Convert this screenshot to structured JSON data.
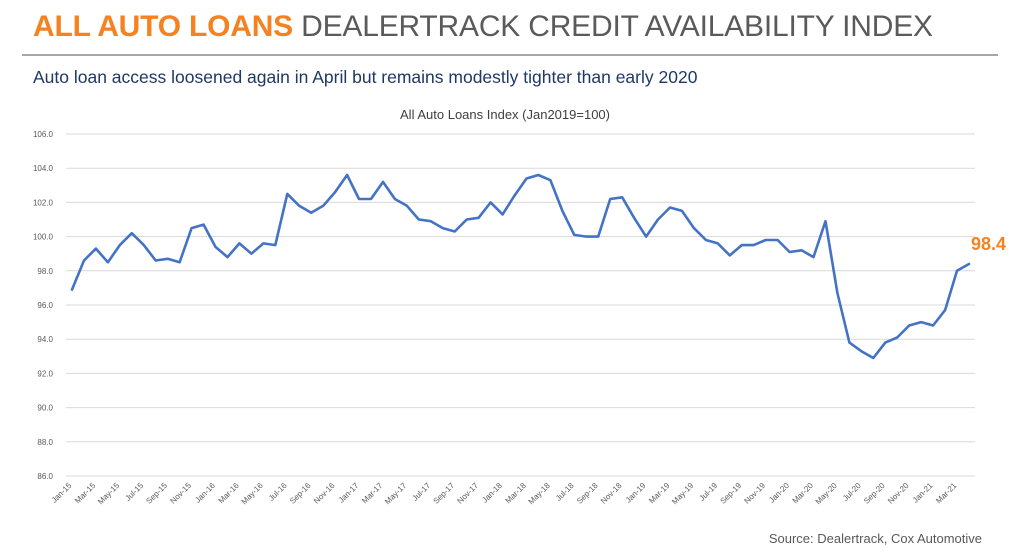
{
  "header": {
    "title_accent": "ALL AUTO LOANS",
    "title_rest": "DEALERTRACK CREDIT AVAILABILITY INDEX",
    "subtitle": "Auto loan access loosened again in April but remains modestly tighter than early 2020"
  },
  "source": "Source: Dealertrack, Cox Automotive",
  "colors": {
    "accent": "#F58220",
    "line": "#4472C4",
    "subtitle": "#1f3864"
  },
  "chart_data": {
    "type": "line",
    "title": "All Auto Loans Index (Jan2019=100)",
    "xlabel": "",
    "ylabel": "",
    "ylim": [
      86.0,
      106.0
    ],
    "y_ticks": [
      "86.0",
      "88.0",
      "90.0",
      "92.0",
      "94.0",
      "96.0",
      "98.0",
      "100.0",
      "102.0",
      "104.0",
      "106.0"
    ],
    "grid": true,
    "x": [
      "Jan-15",
      "Feb-15",
      "Mar-15",
      "Apr-15",
      "May-15",
      "Jun-15",
      "Jul-15",
      "Aug-15",
      "Sep-15",
      "Oct-15",
      "Nov-15",
      "Dec-15",
      "Jan-16",
      "Feb-16",
      "Mar-16",
      "Apr-16",
      "May-16",
      "Jun-16",
      "Jul-16",
      "Aug-16",
      "Sep-16",
      "Oct-16",
      "Nov-16",
      "Dec-16",
      "Jan-17",
      "Feb-17",
      "Mar-17",
      "Apr-17",
      "May-17",
      "Jun-17",
      "Jul-17",
      "Aug-17",
      "Sep-17",
      "Oct-17",
      "Nov-17",
      "Dec-17",
      "Jan-18",
      "Feb-18",
      "Mar-18",
      "Apr-18",
      "May-18",
      "Jun-18",
      "Jul-18",
      "Aug-18",
      "Sep-18",
      "Oct-18",
      "Nov-18",
      "Dec-18",
      "Jan-19",
      "Feb-19",
      "Mar-19",
      "Apr-19",
      "May-19",
      "Jun-19",
      "Jul-19",
      "Aug-19",
      "Sep-19",
      "Oct-19",
      "Nov-19",
      "Dec-19",
      "Jan-20",
      "Feb-20",
      "Mar-20",
      "Apr-20",
      "May-20",
      "Jun-20",
      "Jul-20",
      "Aug-20",
      "Sep-20",
      "Oct-20",
      "Nov-20",
      "Dec-20",
      "Jan-21",
      "Feb-21",
      "Mar-21",
      "Apr-21"
    ],
    "x_tick_labels": [
      "Jan-15",
      "Mar-15",
      "May-15",
      "Jul-15",
      "Sep-15",
      "Nov-15",
      "Jan-16",
      "Mar-16",
      "May-16",
      "Jul-16",
      "Sep-16",
      "Nov-16",
      "Jan-17",
      "Mar-17",
      "May-17",
      "Jul-17",
      "Sep-17",
      "Nov-17",
      "Jan-18",
      "Mar-18",
      "May-18",
      "Jul-18",
      "Sep-18",
      "Nov-18",
      "Jan-19",
      "Mar-19",
      "May-19",
      "Jul-19",
      "Sep-19",
      "Nov-19",
      "Jan-20",
      "Mar-20",
      "May-20",
      "Jul-20",
      "Sep-20",
      "Nov-20",
      "Jan-21",
      "Mar-21"
    ],
    "series": [
      {
        "values": [
          96.9,
          98.6,
          99.3,
          98.5,
          99.5,
          100.2,
          99.5,
          98.6,
          98.7,
          98.5,
          100.5,
          100.7,
          99.4,
          98.8,
          99.6,
          99.0,
          99.6,
          99.5,
          102.5,
          101.8,
          101.4,
          101.8,
          102.6,
          103.6,
          102.2,
          102.2,
          103.2,
          102.2,
          101.8,
          101.0,
          100.9,
          100.5,
          100.3,
          101.0,
          101.1,
          102.0,
          101.3,
          102.4,
          103.4,
          103.6,
          103.3,
          101.5,
          100.1,
          100.0,
          100.0,
          102.2,
          102.3,
          101.1,
          100.0,
          101.0,
          101.7,
          101.5,
          100.5,
          99.8,
          99.6,
          98.9,
          99.5,
          99.5,
          99.8,
          99.8,
          99.1,
          99.2,
          98.8,
          100.9,
          96.7,
          93.8,
          93.3,
          92.9,
          93.8,
          94.1,
          94.8,
          95.0,
          94.8,
          95.7,
          98.0,
          98.4
        ]
      }
    ],
    "annotations": [
      {
        "text": "98.4",
        "at": "Apr-21"
      }
    ]
  }
}
